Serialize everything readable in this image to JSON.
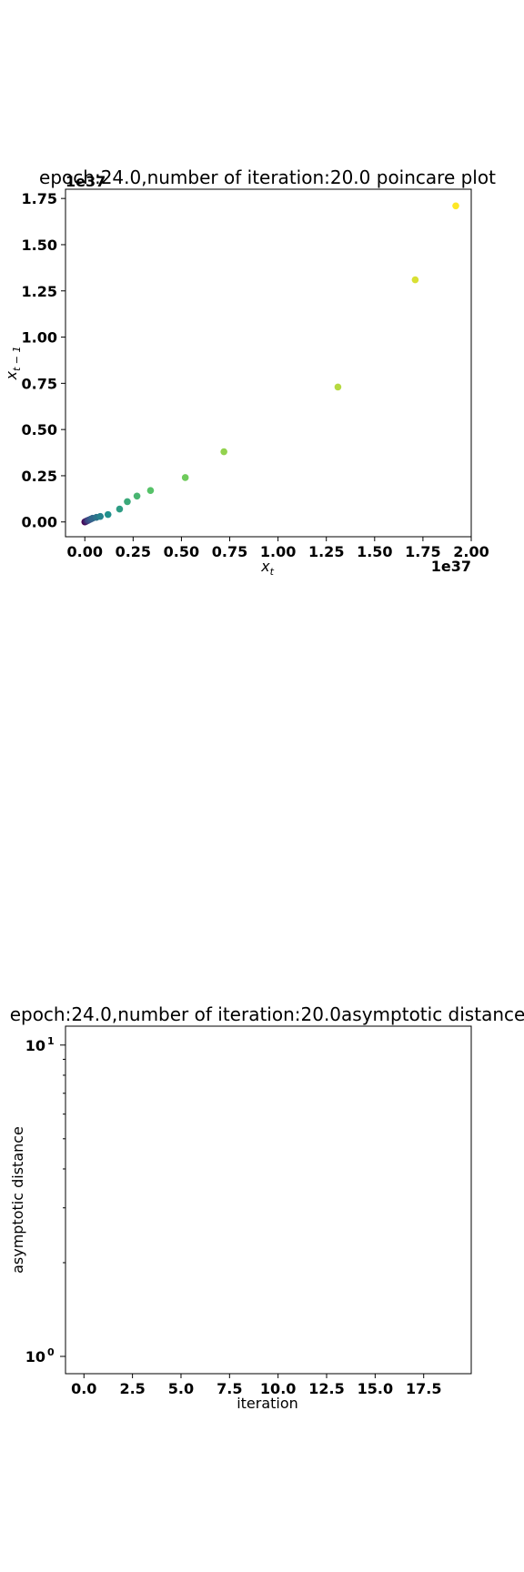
{
  "chart_data": [
    {
      "type": "scatter",
      "title": "epoch:24.0,number of iteration:20.0 poincare plot",
      "xlabel_base": "x",
      "xlabel_sub": "t",
      "ylabel_base": "x",
      "ylabel_sub": "t − 1",
      "x_offset_text": "1e37",
      "y_offset_text": "1e37",
      "xlim": [
        -0.1,
        2.0
      ],
      "ylim": [
        -0.08,
        1.8
      ],
      "xticks": [
        "0.00",
        "0.25",
        "0.50",
        "0.75",
        "1.00",
        "1.25",
        "1.50",
        "1.75",
        "2.00"
      ],
      "xtick_values": [
        0.0,
        0.25,
        0.5,
        0.75,
        1.0,
        1.25,
        1.5,
        1.75,
        2.0
      ],
      "yticks": [
        "0.00",
        "0.25",
        "0.50",
        "0.75",
        "1.00",
        "1.25",
        "1.50",
        "1.75"
      ],
      "ytick_values": [
        0.0,
        0.25,
        0.5,
        0.75,
        1.0,
        1.25,
        1.5,
        1.75
      ],
      "colormap": [
        "#440154",
        "#3b528b",
        "#21908d",
        "#5dc863",
        "#fde725"
      ],
      "points": [
        {
          "x": 0.0,
          "y": 0.0
        },
        {
          "x": 0.005,
          "y": 0.003
        },
        {
          "x": 0.01,
          "y": 0.005
        },
        {
          "x": 0.015,
          "y": 0.008
        },
        {
          "x": 0.02,
          "y": 0.01
        },
        {
          "x": 0.03,
          "y": 0.015
        },
        {
          "x": 0.04,
          "y": 0.02
        },
        {
          "x": 0.06,
          "y": 0.025
        },
        {
          "x": 0.08,
          "y": 0.03
        },
        {
          "x": 0.12,
          "y": 0.04
        },
        {
          "x": 0.18,
          "y": 0.07
        },
        {
          "x": 0.22,
          "y": 0.11
        },
        {
          "x": 0.27,
          "y": 0.14
        },
        {
          "x": 0.34,
          "y": 0.17
        },
        {
          "x": 0.52,
          "y": 0.24
        },
        {
          "x": 0.72,
          "y": 0.38
        },
        {
          "x": 1.31,
          "y": 0.73
        },
        {
          "x": 1.71,
          "y": 1.31
        },
        {
          "x": 1.92,
          "y": 1.71
        }
      ]
    },
    {
      "type": "line",
      "title": "epoch:24.0,number of iteration:20.0asymptotic distance",
      "xlabel": "iteration",
      "ylabel": "asymptotic distance",
      "yscale": "log",
      "xlim": [
        -0.95,
        19.95
      ],
      "ylim": [
        0.88,
        11.5
      ],
      "xticks": [
        "0.0",
        "2.5",
        "5.0",
        "7.5",
        "10.0",
        "12.5",
        "15.0",
        "17.5"
      ],
      "xtick_values": [
        0.0,
        2.5,
        5.0,
        7.5,
        10.0,
        12.5,
        15.0,
        17.5
      ],
      "ytick_major_base": "10",
      "ytick_major": [
        {
          "value": 1,
          "exp": "0"
        },
        {
          "value": 10,
          "exp": "1"
        }
      ],
      "ytick_minor": [
        2,
        3,
        4,
        5,
        6,
        7,
        8,
        9
      ],
      "series": []
    }
  ]
}
